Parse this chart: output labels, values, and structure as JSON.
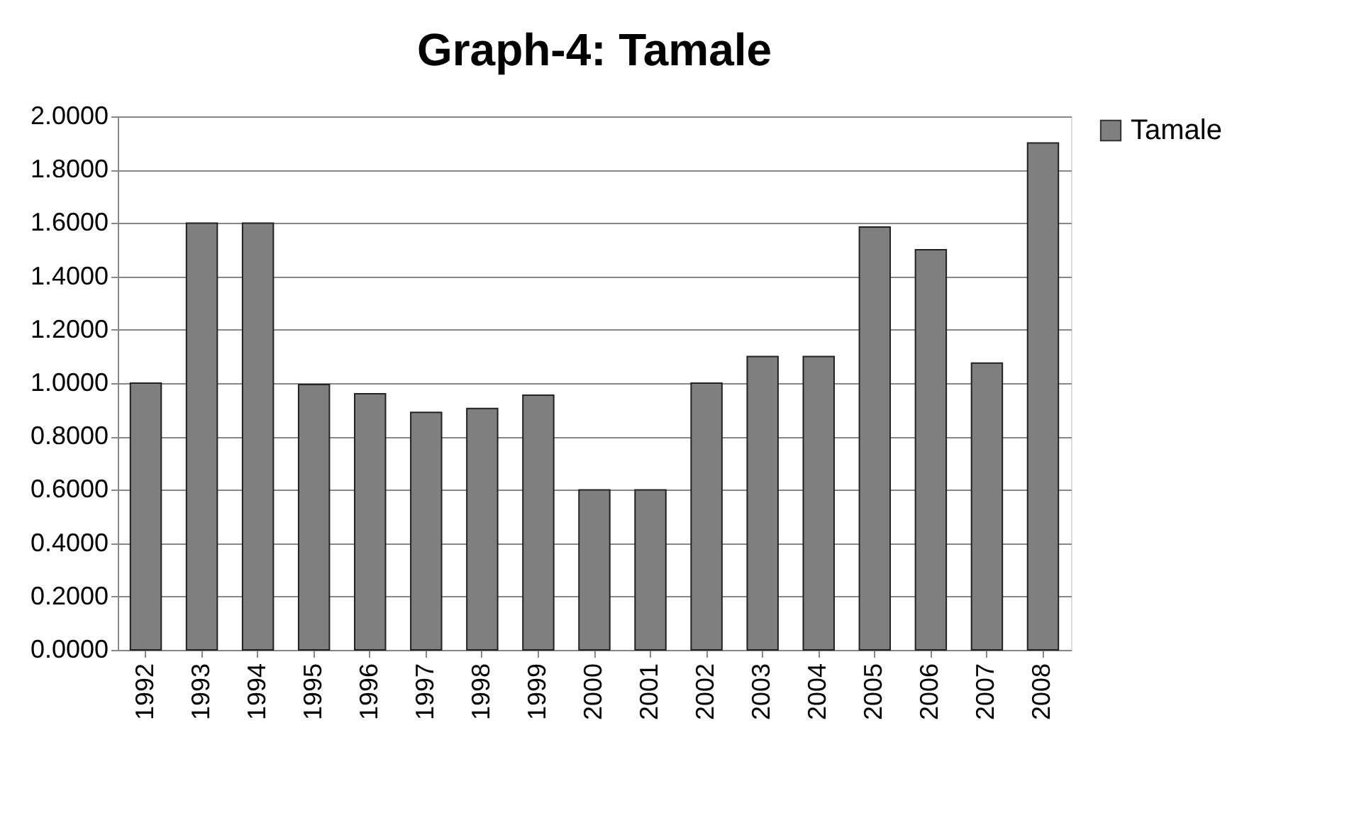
{
  "chart_data": {
    "type": "bar",
    "title": "Graph-4: Tamale",
    "categories": [
      "1992",
      "1993",
      "1994",
      "1995",
      "1996",
      "1997",
      "1998",
      "1999",
      "2000",
      "2001",
      "2002",
      "2003",
      "2004",
      "2005",
      "2006",
      "2007",
      "2008"
    ],
    "series": [
      {
        "name": "Tamale",
        "color": "#7f7f7f",
        "values": [
          1.0,
          1.6,
          1.6,
          0.995,
          0.96,
          0.89,
          0.905,
          0.955,
          0.6,
          0.6,
          1.0,
          1.1,
          1.1,
          1.585,
          1.5,
          1.075,
          1.9
        ]
      }
    ],
    "ylim": [
      0,
      2.0
    ],
    "yticks": [
      {
        "value": 0,
        "label": "0.0000"
      },
      {
        "value": 0.2,
        "label": "0.2000"
      },
      {
        "value": 0.4,
        "label": "0.4000"
      },
      {
        "value": 0.6,
        "label": "0.6000"
      },
      {
        "value": 0.8,
        "label": "0.8000"
      },
      {
        "value": 1.0,
        "label": "1.0000"
      },
      {
        "value": 1.2,
        "label": "1.2000"
      },
      {
        "value": 1.4,
        "label": "1.4000"
      },
      {
        "value": 1.6,
        "label": "1.6000"
      },
      {
        "value": 1.8,
        "label": "1.8000"
      },
      {
        "value": 2.0,
        "label": "2.0000"
      }
    ],
    "grid": "y",
    "legend": "right"
  }
}
